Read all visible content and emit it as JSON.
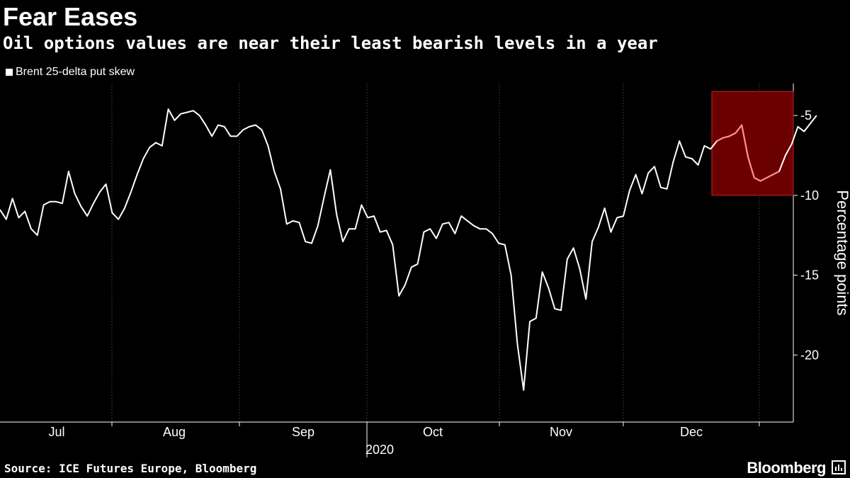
{
  "header": {
    "title": "Fear Eases",
    "subtitle": "Oil options values are near their least bearish levels in a year"
  },
  "footer": {
    "source": "Source: ICE Futures Europe, Bloomberg",
    "brand": "Bloomberg"
  },
  "colors": {
    "background": "#000000",
    "line": "#ffffff",
    "highlight_fill": "#6b0000",
    "highlight_border": "#cc2222",
    "highlight_line": "#ff8c8c",
    "grid": "#666666"
  },
  "chart_data": {
    "type": "line",
    "legend": [
      "Brent 25-delta put skew"
    ],
    "ylabel": "Percentage points",
    "xlabel": "",
    "year_label": "2020",
    "ylim": [
      -24.2,
      -3.0
    ],
    "yticks": [
      -5,
      -10,
      -15,
      -20
    ],
    "ytick_labels": [
      "-5",
      "-10",
      "-15",
      "-20"
    ],
    "month_labels": [
      "Jul",
      "Aug",
      "Sep",
      "Oct",
      "Nov",
      "Dec"
    ],
    "grid": "vertical dotted at month boundaries",
    "legend_position": "top-left",
    "highlight": {
      "from_index": 115,
      "to_index": 125,
      "ymin": -10,
      "ymax": -3.5
    },
    "series": [
      {
        "name": "Brent 25-delta put skew",
        "values": [
          -10.9,
          -11.5,
          -10.2,
          -11.4,
          -11.0,
          -12.1,
          -12.5,
          -10.6,
          -10.4,
          -10.4,
          -10.5,
          -8.5,
          -9.9,
          -10.7,
          -11.3,
          -10.5,
          -9.8,
          -9.3,
          -11.1,
          -11.5,
          -10.8,
          -9.8,
          -8.7,
          -7.7,
          -7.0,
          -6.7,
          -6.9,
          -4.6,
          -5.3,
          -4.9,
          -4.8,
          -4.7,
          -5.0,
          -5.6,
          -6.3,
          -5.6,
          -5.7,
          -6.3,
          -6.3,
          -5.9,
          -5.7,
          -5.6,
          -5.9,
          -6.9,
          -8.5,
          -9.6,
          -11.8,
          -11.6,
          -11.7,
          -12.9,
          -13.0,
          -11.9,
          -10.1,
          -8.4,
          -11.2,
          -12.9,
          -12.1,
          -12.1,
          -10.6,
          -11.4,
          -11.3,
          -12.3,
          -12.2,
          -13.1,
          -16.3,
          -15.6,
          -14.5,
          -14.3,
          -12.3,
          -12.1,
          -12.7,
          -11.8,
          -11.7,
          -12.4,
          -11.3,
          -11.6,
          -11.9,
          -12.1,
          -12.1,
          -12.4,
          -13.0,
          -13.1,
          -15.0,
          -19.3,
          -22.2,
          -17.9,
          -17.7,
          -14.8,
          -15.8,
          -17.1,
          -17.2,
          -14.0,
          -13.3,
          -14.6,
          -16.5,
          -12.9,
          -12.0,
          -10.8,
          -12.3,
          -11.4,
          -11.3,
          -9.7,
          -8.7,
          -9.9,
          -8.6,
          -8.2,
          -9.5,
          -9.6,
          -7.9,
          -6.6,
          -7.6,
          -7.7,
          -8.1,
          -6.9,
          -7.1,
          -6.6,
          -6.4,
          -6.3,
          -6.1,
          -5.6,
          -7.6,
          -8.9,
          -9.1,
          -8.9,
          -8.7,
          -8.5,
          -7.5,
          -6.8,
          -5.7,
          -6.0,
          -5.5,
          -5.0
        ]
      }
    ]
  }
}
